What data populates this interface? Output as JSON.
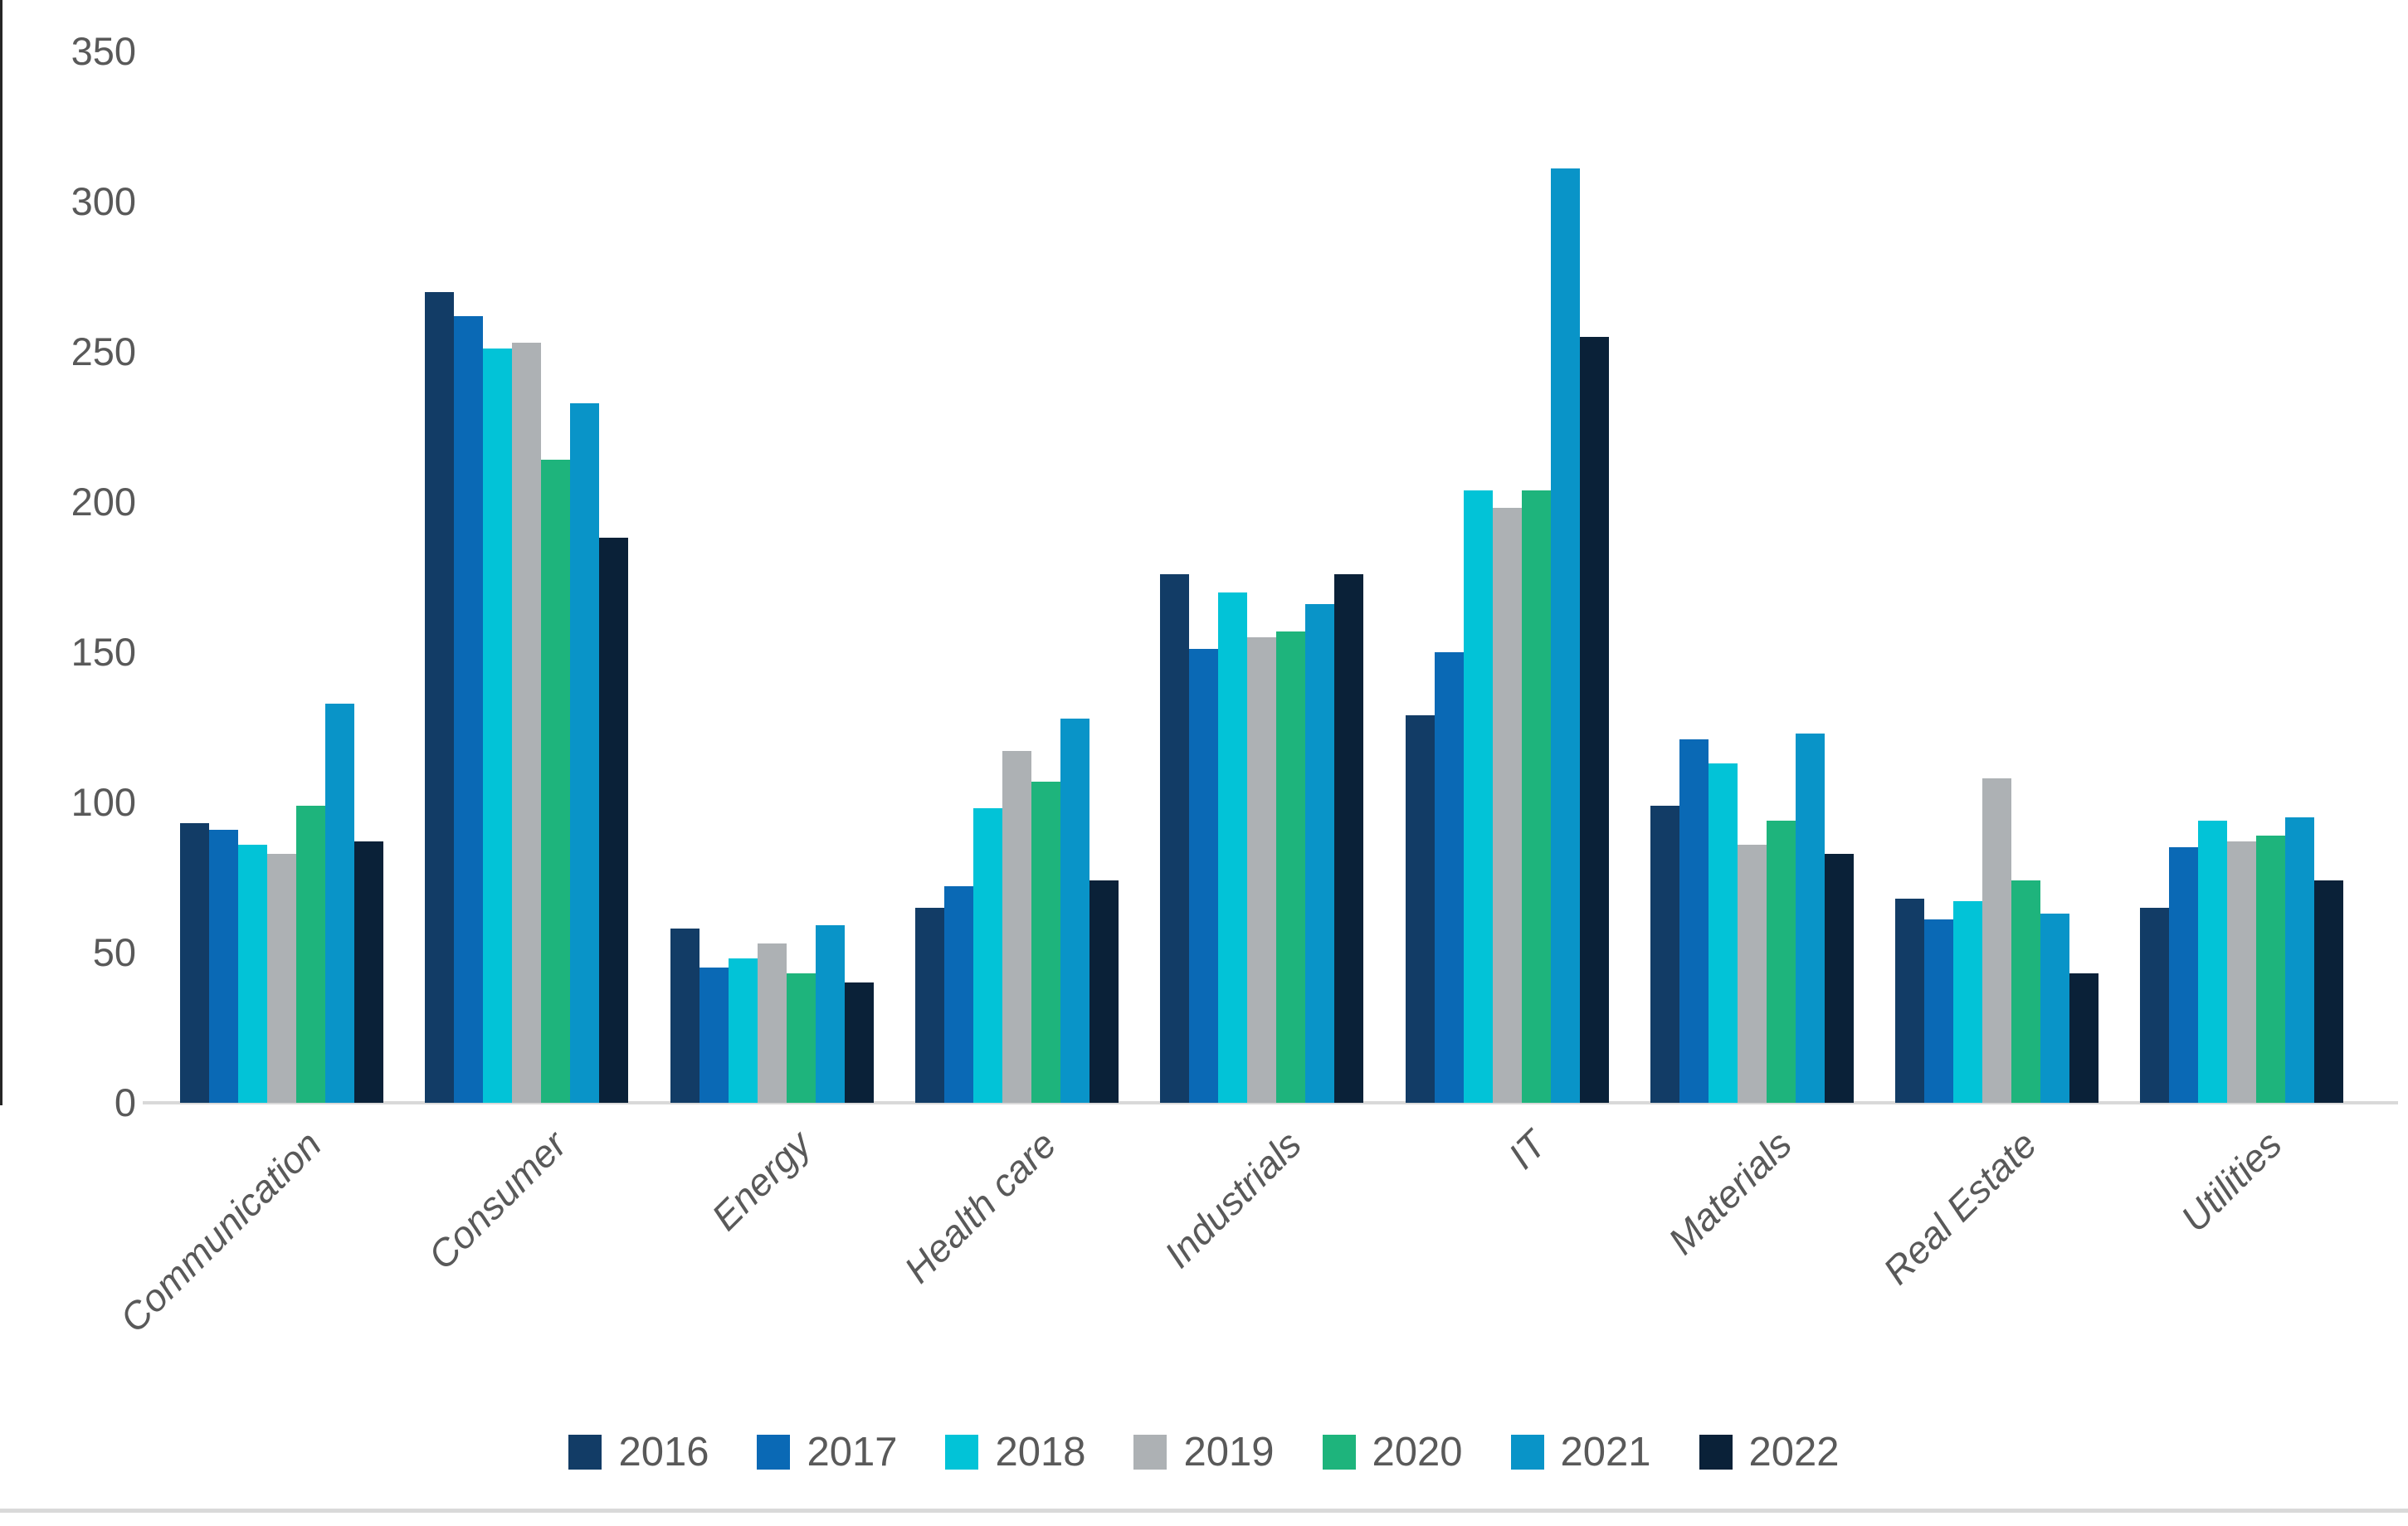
{
  "chart_data": {
    "type": "bar",
    "title": "",
    "xlabel": "",
    "ylabel": "",
    "categories": [
      "Communication",
      "Consumer",
      "Energy",
      "Health care",
      "Industrials",
      "IT",
      "Materials",
      "Real Estate",
      "Utilities"
    ],
    "series": [
      {
        "name": "2016",
        "color": "#123c66",
        "values": [
          93,
          270,
          58,
          65,
          176,
          129,
          99,
          68,
          65
        ]
      },
      {
        "name": "2017",
        "color": "#0a69b5",
        "values": [
          91,
          262,
          45,
          72,
          151,
          150,
          121,
          61,
          85
        ]
      },
      {
        "name": "2018",
        "color": "#02c3d7",
        "values": [
          86,
          251,
          48,
          98,
          170,
          204,
          113,
          67,
          94
        ]
      },
      {
        "name": "2019",
        "color": "#adb1b4",
        "values": [
          83,
          253,
          53,
          117,
          155,
          198,
          86,
          108,
          87
        ]
      },
      {
        "name": "2020",
        "color": "#1eb47c",
        "values": [
          99,
          214,
          43,
          107,
          157,
          204,
          94,
          74,
          89
        ]
      },
      {
        "name": "2021",
        "color": "#0994c8",
        "values": [
          133,
          233,
          59,
          128,
          166,
          311,
          123,
          63,
          95
        ]
      },
      {
        "name": "2022",
        "color": "#0a2138",
        "values": [
          87,
          188,
          40,
          74,
          176,
          255,
          83,
          43,
          74
        ]
      }
    ],
    "ylim": [
      0,
      350
    ],
    "yticks": [
      0,
      50,
      100,
      150,
      200,
      250,
      300,
      350
    ],
    "grid": false,
    "legend_position": "bottom",
    "axis_text_color": "#595959",
    "axis_line_color": "#d9d9d9",
    "background_color": "#ffffff"
  },
  "layout_marks": {
    "left_border": "screenshot-left-border",
    "bottom_border": "screenshot-bottom-border"
  }
}
